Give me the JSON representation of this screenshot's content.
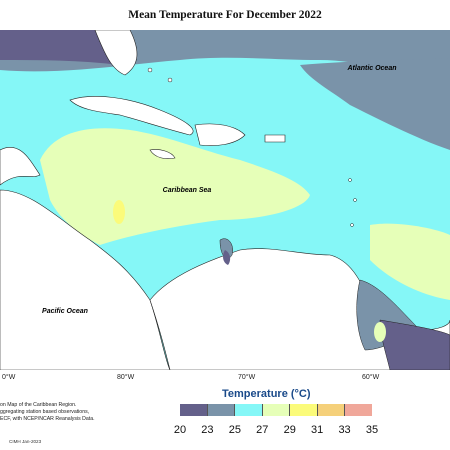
{
  "title": "Mean Temperature For December 2022",
  "map_labels": {
    "atlantic": "Atlantic Ocean",
    "caribbean": "Caribbean Sea",
    "pacific": "Pacific Ocean"
  },
  "longitudes": [
    "0°W",
    "80°W",
    "70°W",
    "60°W"
  ],
  "credit_lines": [
    "on Map of the Caribbean Region.",
    "ggregating station based observations,",
    "ECF, with NCEP/NCAR Reanalysis Data."
  ],
  "credit_date": "CIMH Jan-2023",
  "legend": {
    "title": "Temperature (°C)",
    "ticks": [
      "20",
      "23",
      "25",
      "27",
      "29",
      "31",
      "33",
      "35"
    ],
    "colors": [
      "#64608a",
      "#7a93a9",
      "#85f7f7",
      "#e6ffb8",
      "#fbfb7a",
      "#f5d07a",
      "#f0a79a"
    ]
  }
}
